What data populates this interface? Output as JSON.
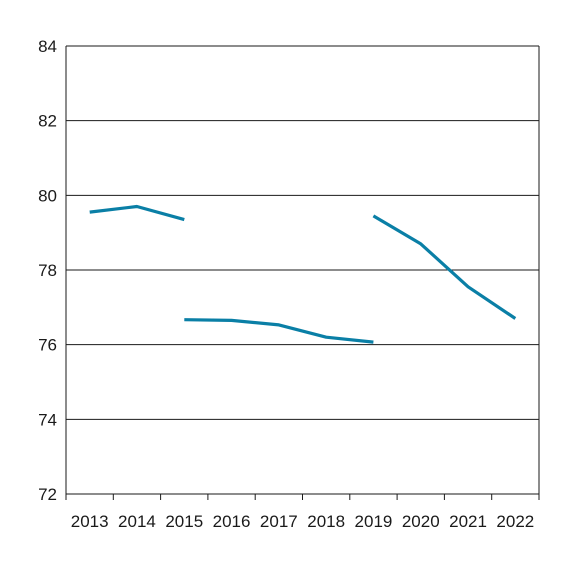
{
  "chart_data": {
    "type": "line",
    "title": "",
    "xlabel": "",
    "ylabel": "",
    "x_categories": [
      "2013",
      "2014",
      "2015",
      "2016",
      "2017",
      "2018",
      "2019",
      "2020",
      "2021",
      "2022"
    ],
    "ylim": [
      72,
      84
    ],
    "yticks": [
      72,
      74,
      76,
      78,
      80,
      82,
      84
    ],
    "grid": "horizontal",
    "series": [
      {
        "color": "#0a7fa6",
        "segments": [
          {
            "x": [
              2013.5,
              2014.5,
              2015.5
            ],
            "y": [
              79.55,
              79.7,
              79.35
            ]
          },
          {
            "x": [
              2015.5,
              2016.5,
              2017.5,
              2018.5,
              2019.5
            ],
            "y": [
              76.67,
              76.65,
              76.53,
              76.2,
              76.07
            ]
          },
          {
            "x": [
              2019.5,
              2020.5,
              2021.5,
              2022.5
            ],
            "y": [
              79.45,
              78.7,
              77.55,
              76.7
            ]
          }
        ]
      }
    ]
  }
}
